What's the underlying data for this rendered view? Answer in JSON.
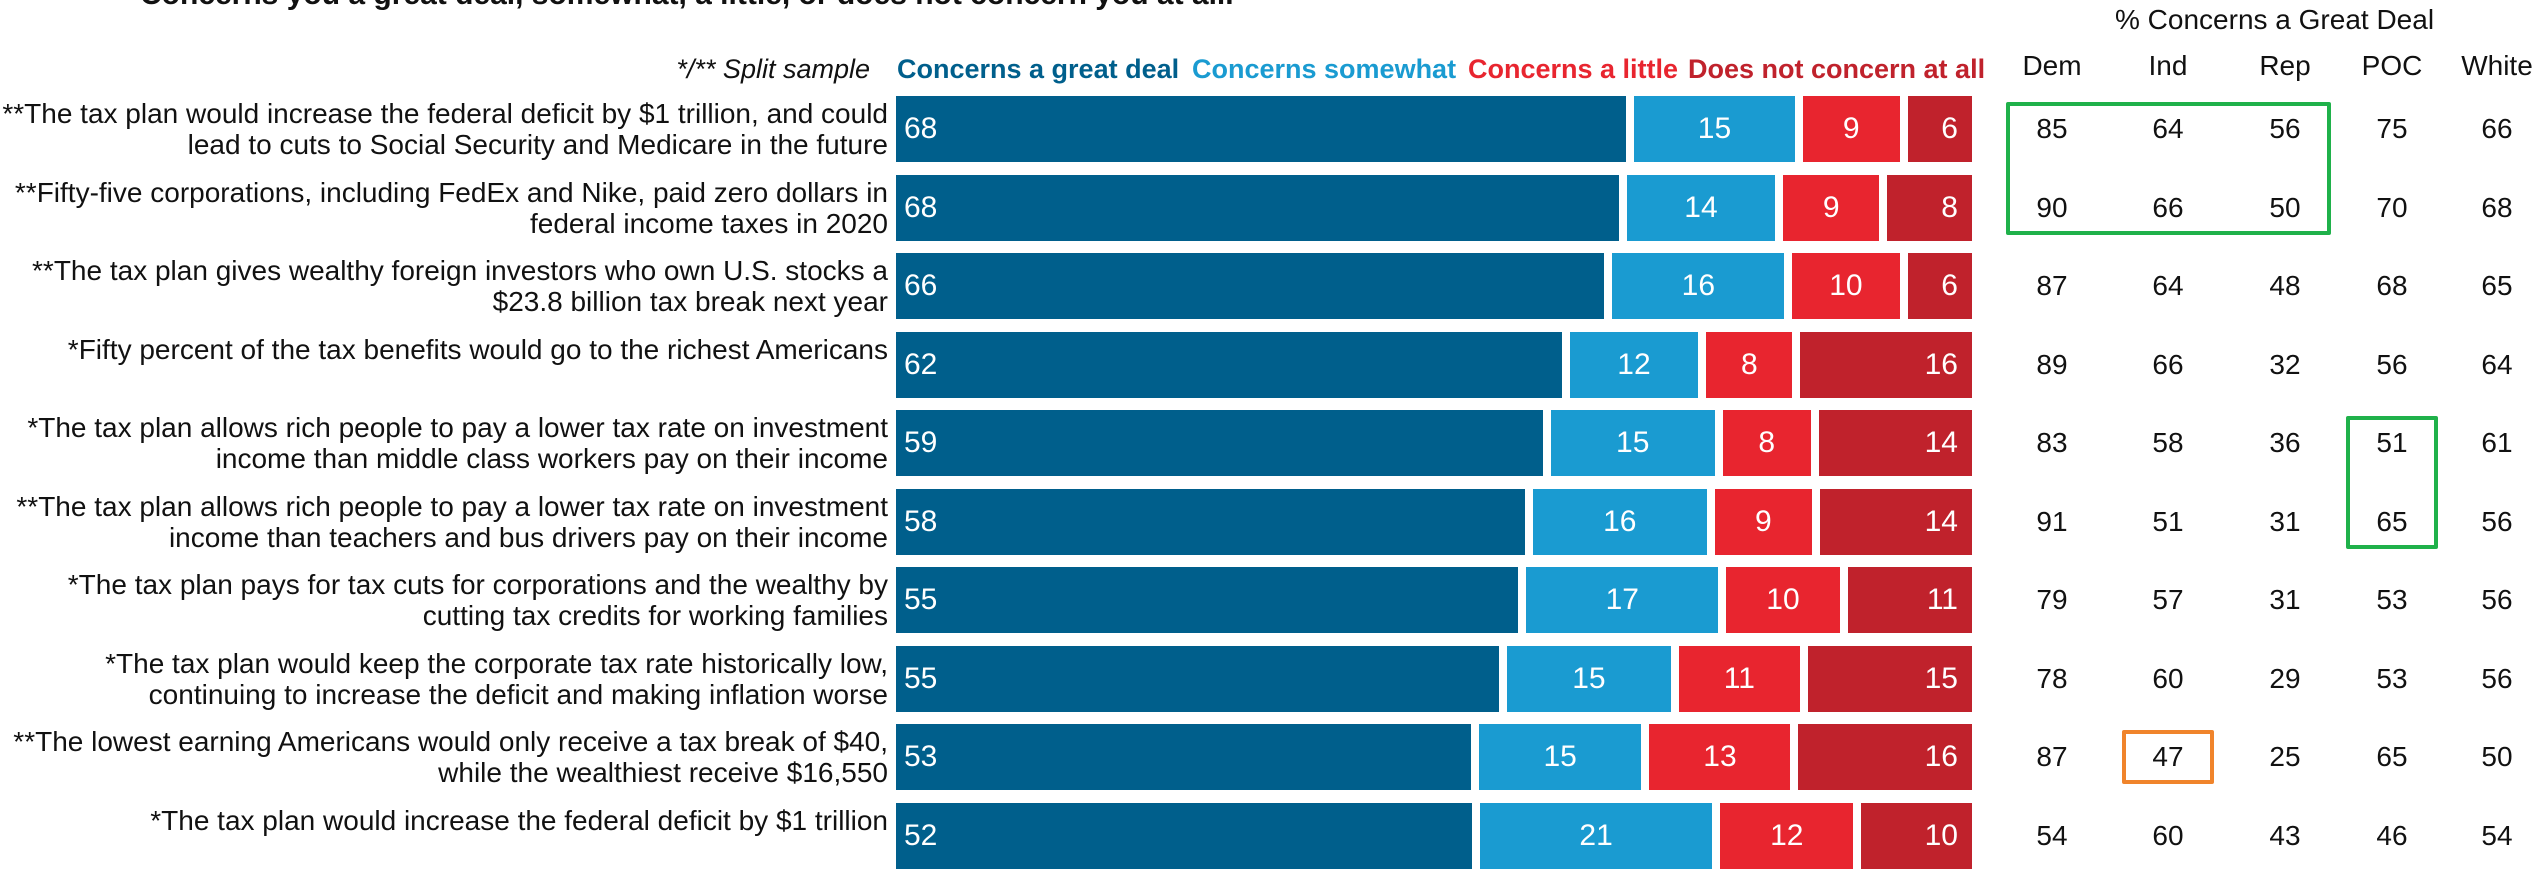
{
  "title": "Concerns you a great deal, somewhat, a little, or does not concern you at all.",
  "split_note": "*/** Split sample",
  "legend": [
    {
      "label": "Concerns a great deal",
      "color": "#005f8c"
    },
    {
      "label": "Concerns somewhat",
      "color": "#1a9bd1"
    },
    {
      "label": "Concerns a little",
      "color": "#e8252f"
    },
    {
      "label": "Does not concern at all",
      "color": "#c0222c"
    }
  ],
  "chart_data": {
    "type": "bar",
    "orientation": "horizontal-stacked",
    "categories": [
      "**The tax plan would increase the federal deficit by $1 trillion, and could lead to cuts to Social Security and Medicare in the future",
      "**Fifty-five corporations, including FedEx and Nike, paid zero dollars in federal income taxes in 2020",
      "**The tax plan gives wealthy foreign investors who own U.S. stocks a $23.8 billion tax break next year",
      "*Fifty percent of the tax benefits would go to the richest Americans",
      "*The tax plan allows rich people to pay a lower tax rate on investment income than middle class workers pay on their income",
      "**The tax plan allows rich people to pay a lower tax rate on investment income than teachers and bus drivers pay on their income",
      "*The tax plan pays for tax cuts for corporations and the wealthy by cutting tax credits for working families",
      "*The tax plan would keep the corporate tax rate historically low, continuing to increase the deficit and making inflation worse",
      "**The lowest earning Americans would only receive a tax break of $40, while the wealthiest receive $16,550",
      "*The tax plan would increase the federal deficit by $1 trillion"
    ],
    "series": [
      {
        "name": "Concerns a great deal",
        "values": [
          68,
          68,
          66,
          62,
          59,
          58,
          55,
          55,
          53,
          52
        ]
      },
      {
        "name": "Concerns somewhat",
        "values": [
          15,
          14,
          16,
          12,
          15,
          16,
          17,
          15,
          15,
          21
        ]
      },
      {
        "name": "Concerns a little",
        "values": [
          9,
          9,
          10,
          8,
          8,
          9,
          10,
          11,
          13,
          12
        ]
      },
      {
        "name": "Does not concern at all",
        "values": [
          6,
          8,
          6,
          16,
          14,
          14,
          11,
          15,
          16,
          10
        ]
      }
    ],
    "xlim": [
      0,
      100
    ]
  },
  "table": {
    "header": "% Concerns a Great Deal",
    "columns": [
      "Dem",
      "Ind",
      "Rep",
      "POC",
      "White"
    ],
    "rows": [
      [
        85,
        64,
        56,
        75,
        66
      ],
      [
        90,
        66,
        50,
        70,
        68
      ],
      [
        87,
        64,
        48,
        68,
        65
      ],
      [
        89,
        66,
        32,
        56,
        64
      ],
      [
        83,
        58,
        36,
        51,
        61
      ],
      [
        91,
        51,
        31,
        65,
        56
      ],
      [
        79,
        57,
        31,
        53,
        56
      ],
      [
        78,
        60,
        29,
        53,
        56
      ],
      [
        87,
        47,
        25,
        65,
        50
      ],
      [
        54,
        60,
        43,
        46,
        54
      ]
    ],
    "highlights": [
      {
        "rows": [
          0,
          1
        ],
        "cols": [
          0,
          2
        ],
        "color": "#1fb14a"
      },
      {
        "rows": [
          4,
          5
        ],
        "cols": [
          3,
          3
        ],
        "color": "#1fb14a"
      },
      {
        "rows": [
          8,
          8
        ],
        "cols": [
          1,
          1
        ],
        "color": "#f0842b"
      }
    ]
  }
}
